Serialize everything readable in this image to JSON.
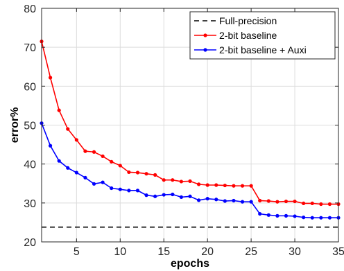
{
  "chart_data": {
    "type": "line",
    "title": "",
    "xlabel": "epochs",
    "ylabel": "error%",
    "xlim": [
      1,
      35
    ],
    "ylim": [
      20,
      80
    ],
    "xticks": [
      5,
      10,
      15,
      20,
      25,
      30,
      35
    ],
    "yticks": [
      20,
      30,
      40,
      50,
      60,
      70,
      80
    ],
    "grid": true,
    "legend_position": "top-right",
    "x": [
      1,
      2,
      3,
      4,
      5,
      6,
      7,
      8,
      9,
      10,
      11,
      12,
      13,
      14,
      15,
      16,
      17,
      18,
      19,
      20,
      21,
      22,
      23,
      24,
      25,
      26,
      27,
      28,
      29,
      30,
      31,
      32,
      33,
      34,
      35
    ],
    "series": [
      {
        "name": "Full-precision",
        "color": "#000000",
        "style": "dashed",
        "marker": "none",
        "values": [
          23.8,
          23.8,
          23.8,
          23.8,
          23.8,
          23.8,
          23.8,
          23.8,
          23.8,
          23.8,
          23.8,
          23.8,
          23.8,
          23.8,
          23.8,
          23.8,
          23.8,
          23.8,
          23.8,
          23.8,
          23.8,
          23.8,
          23.8,
          23.8,
          23.8,
          23.8,
          23.8,
          23.8,
          23.8,
          23.8,
          23.8,
          23.8,
          23.8,
          23.8,
          23.8
        ]
      },
      {
        "name": "2-bit baseline",
        "color": "#ff0000",
        "style": "solid",
        "marker": "dot",
        "values": [
          71.5,
          62.2,
          53.8,
          49.0,
          46.2,
          43.3,
          43.1,
          42.0,
          40.6,
          39.6,
          37.9,
          37.8,
          37.5,
          37.2,
          35.9,
          35.9,
          35.5,
          35.6,
          34.8,
          34.6,
          34.6,
          34.5,
          34.4,
          34.4,
          34.4,
          30.6,
          30.5,
          30.3,
          30.4,
          30.4,
          29.9,
          29.9,
          29.7,
          29.7,
          29.7
        ]
      },
      {
        "name": "2-bit baseline + Auxi",
        "color": "#0000ff",
        "style": "solid",
        "marker": "dot",
        "values": [
          50.5,
          44.7,
          40.8,
          39.0,
          37.8,
          36.5,
          34.9,
          35.3,
          33.8,
          33.5,
          33.2,
          33.2,
          32.0,
          31.7,
          32.1,
          32.2,
          31.5,
          31.7,
          30.7,
          31.1,
          30.9,
          30.5,
          30.6,
          30.3,
          30.3,
          27.2,
          26.9,
          26.7,
          26.7,
          26.6,
          26.3,
          26.2,
          26.2,
          26.2,
          26.2
        ]
      }
    ]
  }
}
